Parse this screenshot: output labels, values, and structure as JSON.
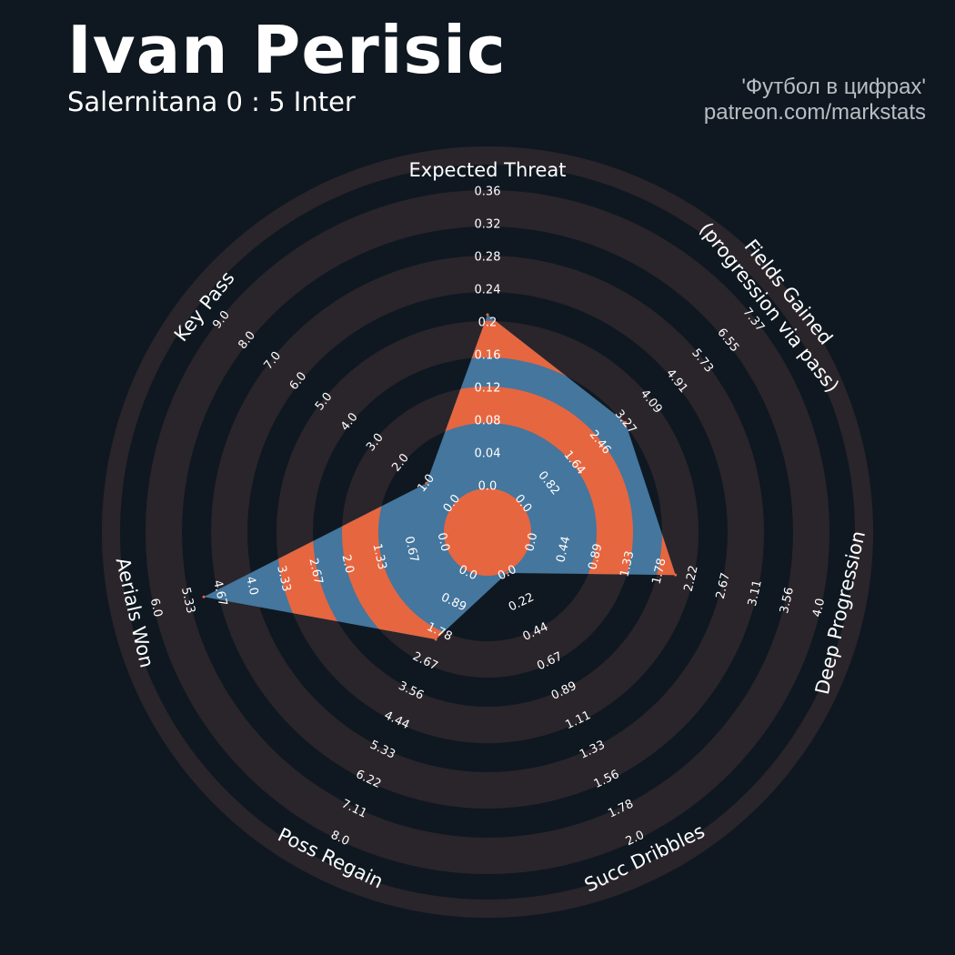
{
  "header": {
    "title": "Ivan Perisic",
    "subtitle": "Salernitana 0 : 5 Inter",
    "credit_line1": "'Футбол в цифрах'",
    "credit_line2": "patreon.com/markstats"
  },
  "colors": {
    "background": "#0f1820",
    "ring": "#2a252b",
    "fill_blue": "#44769e",
    "fill_orange": "#e66640",
    "text": "#ffffff"
  },
  "chart_data": {
    "type": "radar",
    "title": "Ivan Perisic",
    "subtitle": "Salernitana 0 : 5 Inter",
    "axes": [
      {
        "name": "Expected Threat",
        "value": 0.21,
        "ticks": [
          "0.0",
          "0.04",
          "0.08",
          "0.12",
          "0.16",
          "0.2",
          "0.24",
          "0.28",
          "0.32",
          "0.36"
        ]
      },
      {
        "name": "Fields Gained\n(progression via pass)",
        "value": 3.27,
        "ticks": [
          "0.0",
          "0.82",
          "1.64",
          "2.46",
          "3.27",
          "4.09",
          "4.91",
          "5.73",
          "6.55",
          "7.37"
        ]
      },
      {
        "name": "Deep Progression",
        "value": 2.0,
        "ticks": [
          "0.0",
          "0.44",
          "0.89",
          "1.33",
          "1.78",
          "2.22",
          "2.67",
          "3.11",
          "3.56",
          "4.0"
        ]
      },
      {
        "name": "Succ Dribbles",
        "value": 0.0,
        "ticks": [
          "0.0",
          "0.22",
          "0.44",
          "0.67",
          "0.89",
          "1.11",
          "1.33",
          "1.56",
          "1.78",
          "2.0"
        ]
      },
      {
        "name": "Poss Regain",
        "value": 2.0,
        "ticks": [
          "0.0",
          "0.89",
          "1.78",
          "2.67",
          "3.56",
          "4.44",
          "5.33",
          "6.22",
          "7.11",
          "8.0"
        ]
      },
      {
        "name": "Aerials Won",
        "value": 5.0,
        "ticks": [
          "0.0",
          "0.67",
          "1.33",
          "2.0",
          "2.67",
          "3.33",
          "4.0",
          "4.67",
          "5.33",
          "6.0"
        ]
      },
      {
        "name": "Key Pass",
        "value": 1.0,
        "ticks": [
          "0.0",
          "1.0",
          "2.0",
          "3.0",
          "4.0",
          "5.0",
          "6.0",
          "7.0",
          "8.0",
          "9.0"
        ]
      }
    ],
    "grid": true
  }
}
